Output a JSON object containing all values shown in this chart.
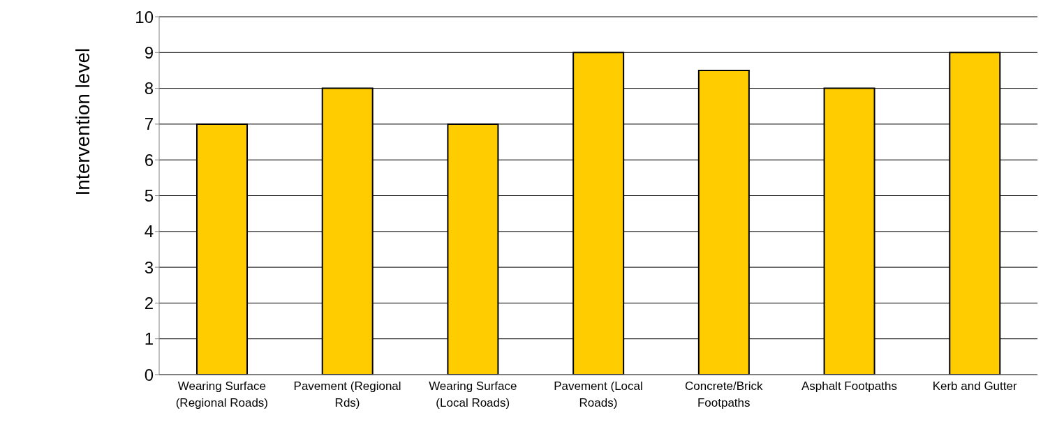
{
  "chart_data": {
    "type": "bar",
    "ylabel": "Intervention level",
    "categories": [
      "Wearing Surface (Regional Roads)",
      "Pavement (Regional Rds)",
      "Wearing Surface (Local Roads)",
      "Pavement (Local Roads)",
      "Concrete/Brick Footpaths",
      "Asphalt Footpaths",
      "Kerb and Gutter"
    ],
    "values": [
      7,
      8,
      7,
      9,
      8.5,
      8,
      9
    ],
    "color": "#ffcc00",
    "ylim": [
      0,
      10
    ],
    "yticks": [
      0,
      1,
      2,
      3,
      4,
      5,
      6,
      7,
      8,
      9,
      10
    ],
    "grid": "y"
  }
}
